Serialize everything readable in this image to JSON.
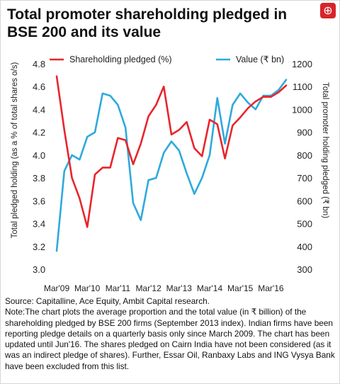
{
  "chart_data": {
    "type": "line",
    "title": "Total promoter shareholding pledged in BSE 200 and its value",
    "x_tick_labels": [
      "Mar'09",
      "Mar'10",
      "Mar'11",
      "Mar'12",
      "Mar'13",
      "Mar'14",
      "Mar'15",
      "Mar'16"
    ],
    "x_range": [
      "Mar'09",
      "Jun'16"
    ],
    "ylabel_left": "Total pledged holding (as a % of total shares o/s)",
    "ylabel_right": "Total promoter holding pledged (₹ bn)",
    "ylim_left": [
      3.0,
      4.8
    ],
    "ylim_right": [
      300,
      1200
    ],
    "yticks_left": [
      "3.0",
      "3.2",
      "3.4",
      "3.6",
      "3.8",
      "4.0",
      "4.2",
      "4.4",
      "4.6",
      "4.8"
    ],
    "yticks_right": [
      "300",
      "400",
      "500",
      "600",
      "700",
      "800",
      "900",
      "1000",
      "1100",
      "1200"
    ],
    "legend_position": "top",
    "grid": false,
    "series": [
      {
        "name": "Shareholding pledged (%)",
        "axis": "left",
        "color": "#e8252c",
        "values": [
          4.69,
          4.22,
          3.8,
          3.62,
          3.37,
          3.83,
          3.89,
          3.89,
          4.15,
          4.13,
          3.92,
          4.1,
          4.34,
          4.44,
          4.6,
          4.18,
          4.22,
          4.29,
          4.06,
          3.99,
          4.31,
          4.27,
          3.97,
          4.26,
          4.33,
          4.41,
          4.47,
          4.51,
          4.51,
          4.55,
          4.61
        ]
      },
      {
        "name": "Value (₹ bn)",
        "axis": "right",
        "color": "#2eaadc",
        "values": [
          380,
          730,
          800,
          780,
          880,
          900,
          1070,
          1060,
          1020,
          920,
          590,
          515,
          690,
          700,
          810,
          860,
          820,
          720,
          630,
          700,
          800,
          1050,
          850,
          1020,
          1070,
          1030,
          1000,
          1060,
          1060,
          1085,
          1130
        ]
      }
    ]
  },
  "source": "Source: Capitalline, Ace Equity, Ambit Capital research.",
  "note": "Note:The chart plots the average proportion and the total value (in ₹ billion) of the shareholding pledged by BSE 200 firms (September 2013 index). Indian firms have been reporting pledge details on a quarterly basis only since March 2009. The chart has been updated until Jun'16. The shares pledged on Cairn India have not been considered (as it was an indirect pledge of shares). Further, Essar Oil, Ranbaxy Labs and ING Vysya Bank have been excluded from this list."
}
